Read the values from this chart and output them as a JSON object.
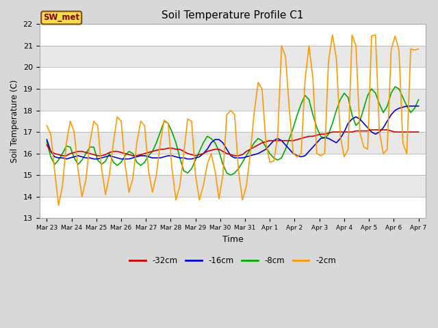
{
  "title": "Soil Temperature Profile C1",
  "xlabel": "Time",
  "ylabel": "Soil Temperature (C)",
  "ylim": [
    13.0,
    22.0
  ],
  "yticks": [
    13.0,
    14.0,
    15.0,
    16.0,
    17.0,
    18.0,
    19.0,
    20.0,
    21.0,
    22.0
  ],
  "legend_label": "SW_met",
  "legend_entries": [
    "-32cm",
    "-16cm",
    "-8cm",
    "-2cm"
  ],
  "legend_colors": [
    "#cc0000",
    "#0000cc",
    "#00aa00",
    "#ff9900"
  ],
  "line_width": 1.2,
  "x_labels": [
    "Mar 23",
    "Mar 24",
    "Mar 25",
    "Mar 26",
    "Mar 27",
    "Mar 28",
    "Mar 29",
    "Mar 30",
    "Mar 31",
    "Apr 1",
    "Apr 2",
    "Apr 3",
    "Apr 4",
    "Apr 5",
    "Apr 6",
    "Apr 7"
  ],
  "band_colors": [
    "#ffffff",
    "#e8e8e8"
  ],
  "red_data": [
    16.4,
    16.1,
    16.0,
    15.95,
    15.9,
    15.9,
    16.0,
    16.05,
    16.1,
    16.1,
    16.05,
    16.0,
    15.95,
    15.9,
    15.9,
    15.95,
    16.05,
    16.1,
    16.1,
    16.05,
    16.0,
    15.95,
    15.9,
    15.9,
    15.95,
    16.0,
    16.05,
    16.1,
    16.15,
    16.2,
    16.2,
    16.25,
    16.25,
    16.2,
    16.2,
    16.1,
    16.0,
    15.95,
    15.9,
    15.95,
    16.0,
    16.1,
    16.15,
    16.2,
    16.2,
    16.1,
    16.0,
    15.95,
    15.9,
    15.9,
    15.95,
    16.1,
    16.2,
    16.3,
    16.4,
    16.5,
    16.55,
    16.6,
    16.6,
    16.6,
    16.6,
    16.6,
    16.6,
    16.6,
    16.65,
    16.7,
    16.75,
    16.8,
    16.8,
    16.85,
    16.9,
    16.9,
    16.95,
    17.0,
    17.0,
    17.0,
    17.0,
    17.0,
    17.0,
    17.05,
    17.05,
    17.05,
    17.05,
    17.1,
    17.1,
    17.1,
    17.1,
    17.1,
    17.05,
    17.0,
    17.0,
    17.0,
    17.0,
    17.0,
    17.0,
    17.0
  ],
  "blue_data": [
    16.65,
    16.1,
    15.85,
    15.8,
    15.8,
    15.75,
    15.8,
    15.85,
    15.9,
    15.85,
    15.8,
    15.8,
    15.75,
    15.75,
    15.8,
    15.85,
    15.9,
    15.85,
    15.8,
    15.75,
    15.75,
    15.75,
    15.8,
    15.85,
    15.9,
    15.9,
    15.85,
    15.8,
    15.8,
    15.8,
    15.85,
    15.9,
    15.9,
    15.85,
    15.8,
    15.8,
    15.75,
    15.75,
    15.8,
    15.85,
    16.0,
    16.2,
    16.5,
    16.65,
    16.65,
    16.5,
    16.2,
    15.9,
    15.8,
    15.8,
    15.8,
    15.85,
    15.9,
    15.95,
    16.0,
    16.1,
    16.2,
    16.4,
    16.6,
    16.7,
    16.6,
    16.4,
    16.2,
    16.0,
    15.9,
    15.85,
    15.9,
    16.1,
    16.3,
    16.5,
    16.7,
    16.75,
    16.7,
    16.6,
    16.5,
    16.7,
    17.0,
    17.4,
    17.6,
    17.7,
    17.6,
    17.4,
    17.2,
    17.0,
    16.9,
    17.0,
    17.2,
    17.5,
    17.8,
    18.0,
    18.1,
    18.15,
    18.2,
    18.2,
    18.2,
    18.2
  ],
  "green_data": [
    16.55,
    15.85,
    15.5,
    15.7,
    16.0,
    16.35,
    16.3,
    15.8,
    15.5,
    15.7,
    16.0,
    16.3,
    16.3,
    15.7,
    15.5,
    15.65,
    16.0,
    15.6,
    15.45,
    15.6,
    15.9,
    16.1,
    16.0,
    15.6,
    15.45,
    15.6,
    15.9,
    16.1,
    16.5,
    17.0,
    17.5,
    17.4,
    17.0,
    16.5,
    15.8,
    15.2,
    15.1,
    15.3,
    15.7,
    16.1,
    16.5,
    16.8,
    16.7,
    16.5,
    16.1,
    15.5,
    15.1,
    15.0,
    15.1,
    15.3,
    15.6,
    15.9,
    16.2,
    16.5,
    16.7,
    16.6,
    16.3,
    16.0,
    15.8,
    15.7,
    15.8,
    16.2,
    16.7,
    17.2,
    17.8,
    18.3,
    18.7,
    18.5,
    17.8,
    17.2,
    16.8,
    16.7,
    16.9,
    17.4,
    18.0,
    18.5,
    18.8,
    18.6,
    17.8,
    17.3,
    17.5,
    18.1,
    18.7,
    19.0,
    18.8,
    18.3,
    17.9,
    18.2,
    18.8,
    19.1,
    19.0,
    18.6,
    18.2,
    17.9,
    18.1,
    18.5
  ],
  "orange_data": [
    17.3,
    16.9,
    15.2,
    13.6,
    14.5,
    16.5,
    17.5,
    17.0,
    15.2,
    14.0,
    14.8,
    16.5,
    17.5,
    17.3,
    15.3,
    14.1,
    15.0,
    16.5,
    17.7,
    17.5,
    15.5,
    14.2,
    14.85,
    16.5,
    17.5,
    17.3,
    15.2,
    14.2,
    15.0,
    16.5,
    17.55,
    17.4,
    15.3,
    13.85,
    14.5,
    16.0,
    17.6,
    17.5,
    15.0,
    13.85,
    14.5,
    15.5,
    16.0,
    15.2,
    13.9,
    15.0,
    17.8,
    18.0,
    17.8,
    15.2,
    13.85,
    14.5,
    16.0,
    17.9,
    19.3,
    19.0,
    16.5,
    15.6,
    15.65,
    16.8,
    21.0,
    20.5,
    18.0,
    16.0,
    15.85,
    16.0,
    19.4,
    21.0,
    19.5,
    16.0,
    15.9,
    16.0,
    20.3,
    21.5,
    20.4,
    16.8,
    15.85,
    16.2,
    21.5,
    21.0,
    17.0,
    16.3,
    16.2,
    21.45,
    21.5,
    17.0,
    16.0,
    16.2,
    20.8,
    21.45,
    20.8,
    16.5,
    16.0,
    20.85,
    20.8,
    20.85
  ]
}
